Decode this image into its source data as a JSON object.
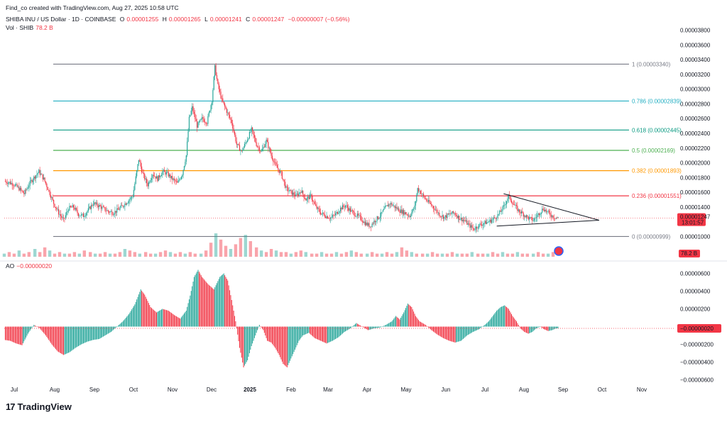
{
  "header": {
    "credit": "Find_co created with TradingView.com, Aug 27, 2025 10:58 UTC",
    "symbol": "SHIBA INU / US Dollar · 1D · COINBASE",
    "o_label": "O",
    "o_value": "0.00001255",
    "h_label": "H",
    "h_value": "0.00001265",
    "l_label": "L",
    "l_value": "0.00001241",
    "c_label": "C",
    "c_value": "0.00001247",
    "change": "−0.00000007 (−0.56%)",
    "vol_label": "Vol · SHIB",
    "vol_value": "78.2 B"
  },
  "ao": {
    "label": "AO",
    "value": "−0.00000020"
  },
  "price_badge": {
    "price": "0.00001247",
    "timer": "13:01:57",
    "color": "#f23645"
  },
  "vol_badge": {
    "value": "78.2 B",
    "color": "#f23645"
  },
  "ao_badge": {
    "value": "−0.00000020",
    "color": "#f23645"
  },
  "logo": {
    "mark": "17",
    "text": "TradingView"
  },
  "colors": {
    "up": "#26a69a",
    "down": "#f23645",
    "ao_up": "#26a69a",
    "ao_down": "#f23645"
  },
  "chart_data": [
    {
      "type": "candlestick",
      "x_ticks": [
        "Jul",
        "Aug",
        "Sep",
        "Oct",
        "Nov",
        "Dec",
        "2025",
        "Feb",
        "Mar",
        "Apr",
        "May",
        "Jun",
        "Jul",
        "Aug",
        "Sep",
        "Oct",
        "Nov"
      ],
      "y_ticks": [
        "0.00003800",
        "0.00003600",
        "0.00003400",
        "0.00003200",
        "0.00003000",
        "0.00002800",
        "0.00002600",
        "0.00002400",
        "0.00002200",
        "0.00002000",
        "0.00001800",
        "0.00001600",
        "0.00001400",
        "0.00001000"
      ],
      "y_tick_values": [
        3.8,
        3.6,
        3.4,
        3.2,
        3.0,
        2.8,
        2.6,
        2.4,
        2.2,
        2.0,
        1.8,
        1.6,
        1.4,
        1.0
      ],
      "y_unit_scale": 1e-05,
      "ylim": [
        0.82,
        3.98
      ],
      "close_path": [
        [
          0,
          1.75
        ],
        [
          8,
          1.72
        ],
        [
          15,
          1.65
        ],
        [
          20,
          1.58
        ],
        [
          27,
          1.75
        ],
        [
          35,
          1.88
        ],
        [
          40,
          1.78
        ],
        [
          45,
          1.62
        ],
        [
          50,
          1.45
        ],
        [
          55,
          1.32
        ],
        [
          60,
          1.22
        ],
        [
          65,
          1.38
        ],
        [
          70,
          1.4
        ],
        [
          75,
          1.3
        ],
        [
          80,
          1.28
        ],
        [
          85,
          1.36
        ],
        [
          90,
          1.45
        ],
        [
          95,
          1.42
        ],
        [
          100,
          1.38
        ],
        [
          105,
          1.34
        ],
        [
          110,
          1.32
        ],
        [
          115,
          1.36
        ],
        [
          120,
          1.42
        ],
        [
          125,
          1.48
        ],
        [
          130,
          1.55
        ],
        [
          133,
          1.8
        ],
        [
          136,
          2.05
        ],
        [
          140,
          1.85
        ],
        [
          145,
          1.7
        ],
        [
          150,
          1.85
        ],
        [
          155,
          1.78
        ],
        [
          160,
          1.88
        ],
        [
          165,
          1.85
        ],
        [
          170,
          1.78
        ],
        [
          175,
          1.72
        ],
        [
          180,
          1.85
        ],
        [
          184,
          2.1
        ],
        [
          187,
          2.6
        ],
        [
          190,
          2.75
        ],
        [
          195,
          2.5
        ],
        [
          200,
          2.6
        ],
        [
          205,
          2.55
        ],
        [
          210,
          2.85
        ],
        [
          213,
          3.3
        ],
        [
          216,
          3.05
        ],
        [
          220,
          2.85
        ],
        [
          225,
          2.7
        ],
        [
          230,
          2.55
        ],
        [
          235,
          2.25
        ],
        [
          240,
          2.15
        ],
        [
          245,
          2.3
        ],
        [
          250,
          2.45
        ],
        [
          255,
          2.25
        ],
        [
          260,
          2.15
        ],
        [
          265,
          2.3
        ],
        [
          270,
          2.1
        ],
        [
          275,
          1.95
        ],
        [
          280,
          1.85
        ],
        [
          285,
          1.65
        ],
        [
          290,
          1.6
        ],
        [
          295,
          1.55
        ],
        [
          300,
          1.62
        ],
        [
          305,
          1.5
        ],
        [
          310,
          1.55
        ],
        [
          315,
          1.4
        ],
        [
          320,
          1.32
        ],
        [
          325,
          1.28
        ],
        [
          330,
          1.25
        ],
        [
          335,
          1.3
        ],
        [
          340,
          1.38
        ],
        [
          345,
          1.42
        ],
        [
          350,
          1.35
        ],
        [
          355,
          1.3
        ],
        [
          360,
          1.25
        ],
        [
          365,
          1.18
        ],
        [
          370,
          1.14
        ],
        [
          375,
          1.22
        ],
        [
          380,
          1.28
        ],
        [
          385,
          1.38
        ],
        [
          390,
          1.45
        ],
        [
          395,
          1.4
        ],
        [
          400,
          1.35
        ],
        [
          405,
          1.32
        ],
        [
          410,
          1.28
        ],
        [
          415,
          1.4
        ],
        [
          418,
          1.65
        ],
        [
          421,
          1.6
        ],
        [
          425,
          1.52
        ],
        [
          430,
          1.45
        ],
        [
          435,
          1.38
        ],
        [
          440,
          1.3
        ],
        [
          445,
          1.26
        ],
        [
          450,
          1.3
        ],
        [
          455,
          1.32
        ],
        [
          460,
          1.25
        ],
        [
          465,
          1.22
        ],
        [
          470,
          1.15
        ],
        [
          475,
          1.1
        ],
        [
          480,
          1.15
        ],
        [
          485,
          1.18
        ],
        [
          490,
          1.2
        ],
        [
          495,
          1.24
        ],
        [
          500,
          1.3
        ],
        [
          505,
          1.4
        ],
        [
          510,
          1.55
        ],
        [
          513,
          1.48
        ],
        [
          516,
          1.42
        ],
        [
          520,
          1.35
        ],
        [
          525,
          1.3
        ],
        [
          530,
          1.25
        ],
        [
          535,
          1.22
        ],
        [
          540,
          1.3
        ],
        [
          545,
          1.38
        ],
        [
          550,
          1.32
        ],
        [
          555,
          1.27
        ],
        [
          560,
          1.25
        ]
      ],
      "fib_levels": [
        {
          "ratio": "1",
          "value": "0.00003340",
          "y": 3.34,
          "color": "#787b86"
        },
        {
          "ratio": "0.786",
          "value": "0.00002839",
          "y": 2.839,
          "color": "#22aec2"
        },
        {
          "ratio": "0.618",
          "value": "0.00002445",
          "y": 2.445,
          "color": "#089981"
        },
        {
          "ratio": "0.5",
          "value": "0.00002169",
          "y": 2.169,
          "color": "#4caf50"
        },
        {
          "ratio": "0.382",
          "value": "0.00001893",
          "y": 1.893,
          "color": "#ff9800"
        },
        {
          "ratio": "0.236",
          "value": "0.00001551",
          "y": 1.551,
          "color": "#f23645"
        },
        {
          "ratio": "0",
          "value": "0.00000999",
          "y": 0.999,
          "color": "#787b86"
        }
      ],
      "last_price": 1.247,
      "triangle": {
        "upper": [
          [
            505,
            1.58
          ],
          [
            580,
            1.22
          ]
        ],
        "lower": [
          [
            498,
            1.14
          ],
          [
            580,
            1.22
          ]
        ]
      }
    },
    {
      "type": "bar",
      "name": "Vol · SHIB",
      "description_values": [
        2,
        3,
        2,
        4,
        2,
        3,
        5,
        3,
        6,
        4,
        2,
        3,
        2,
        2,
        3,
        2,
        4,
        3,
        2,
        2,
        3,
        2,
        2,
        3,
        5,
        4,
        3,
        2,
        3,
        2,
        2,
        3,
        4,
        3,
        2,
        3,
        2,
        3,
        2,
        2,
        4,
        9,
        15,
        11,
        7,
        5,
        8,
        12,
        14,
        10,
        6,
        4,
        3,
        5,
        4,
        3,
        3,
        2,
        3,
        4,
        3,
        2,
        2,
        3,
        2,
        2,
        3,
        2,
        3,
        4,
        3,
        2,
        2,
        3,
        2,
        2,
        3,
        2,
        3,
        6,
        4,
        3,
        2,
        2,
        2,
        3,
        2,
        2,
        2,
        3,
        2,
        2,
        2,
        3,
        2,
        2,
        2,
        3,
        2,
        3,
        2,
        2,
        3,
        2,
        2,
        2,
        3,
        2,
        2,
        3
      ]
    },
    {
      "type": "bar",
      "name": "AO",
      "y_ticks": [
        "0.00000600",
        "0.00000400",
        "0.00000200",
        "0.00000000",
        "−0.00000200",
        "−0.00000400",
        "−0.00000600"
      ],
      "y_tick_values": [
        6,
        4,
        2,
        0,
        -2,
        -4,
        -6
      ],
      "y_unit_scale": 1e-06,
      "ylim": [
        -6.2,
        6.6
      ],
      "path": [
        [
          0,
          -1.5
        ],
        [
          6,
          -1.6
        ],
        [
          12,
          -1.9
        ],
        [
          18,
          -2.1
        ],
        [
          24,
          -0.8
        ],
        [
          30,
          0.2
        ],
        [
          36,
          -0.2
        ],
        [
          42,
          -1.0
        ],
        [
          48,
          -2.0
        ],
        [
          54,
          -2.8
        ],
        [
          60,
          -3.2
        ],
        [
          66,
          -2.9
        ],
        [
          72,
          -2.4
        ],
        [
          78,
          -2.0
        ],
        [
          84,
          -1.7
        ],
        [
          90,
          -1.5
        ],
        [
          96,
          -1.4
        ],
        [
          102,
          -1.0
        ],
        [
          108,
          -0.6
        ],
        [
          114,
          0.0
        ],
        [
          120,
          0.6
        ],
        [
          126,
          1.4
        ],
        [
          132,
          2.5
        ],
        [
          138,
          4.2
        ],
        [
          142,
          3.6
        ],
        [
          148,
          2.2
        ],
        [
          154,
          1.6
        ],
        [
          160,
          2.0
        ],
        [
          166,
          1.8
        ],
        [
          172,
          1.3
        ],
        [
          178,
          0.9
        ],
        [
          184,
          1.8
        ],
        [
          188,
          3.5
        ],
        [
          192,
          5.6
        ],
        [
          196,
          6.4
        ],
        [
          200,
          5.6
        ],
        [
          206,
          4.8
        ],
        [
          212,
          4.2
        ],
        [
          218,
          5.6
        ],
        [
          222,
          6.0
        ],
        [
          226,
          5.2
        ],
        [
          230,
          3.0
        ],
        [
          234,
          0.6
        ],
        [
          238,
          -2.4
        ],
        [
          242,
          -4.6
        ],
        [
          246,
          -3.8
        ],
        [
          250,
          -2.2
        ],
        [
          254,
          -1.0
        ],
        [
          258,
          0.2
        ],
        [
          262,
          -0.4
        ],
        [
          266,
          -1.6
        ],
        [
          270,
          -1.8
        ],
        [
          274,
          -2.4
        ],
        [
          278,
          -3.2
        ],
        [
          282,
          -4.2
        ],
        [
          286,
          -4.6
        ],
        [
          290,
          -3.6
        ],
        [
          294,
          -2.6
        ],
        [
          298,
          -1.6
        ],
        [
          302,
          -1.0
        ],
        [
          308,
          -0.7
        ],
        [
          314,
          -1.3
        ],
        [
          320,
          -1.6
        ],
        [
          326,
          -1.9
        ],
        [
          332,
          -1.6
        ],
        [
          338,
          -1.2
        ],
        [
          344,
          -0.6
        ],
        [
          350,
          -0.2
        ],
        [
          356,
          0.4
        ],
        [
          362,
          0.0
        ],
        [
          368,
          -0.4
        ],
        [
          374,
          -0.2
        ],
        [
          380,
          -0.1
        ],
        [
          386,
          0.2
        ],
        [
          392,
          0.6
        ],
        [
          396,
          1.2
        ],
        [
          400,
          0.8
        ],
        [
          404,
          1.6
        ],
        [
          408,
          2.6
        ],
        [
          412,
          2.2
        ],
        [
          416,
          1.2
        ],
        [
          420,
          0.6
        ],
        [
          426,
          0.2
        ],
        [
          432,
          -0.4
        ],
        [
          438,
          -0.9
        ],
        [
          444,
          -1.3
        ],
        [
          450,
          -1.6
        ],
        [
          456,
          -1.8
        ],
        [
          462,
          -1.6
        ],
        [
          468,
          -1.0
        ],
        [
          474,
          -0.6
        ],
        [
          480,
          -0.3
        ],
        [
          486,
          0.2
        ],
        [
          490,
          0.6
        ],
        [
          494,
          1.2
        ],
        [
          498,
          1.8
        ],
        [
          502,
          2.2
        ],
        [
          506,
          2.4
        ],
        [
          510,
          2.0
        ],
        [
          514,
          1.2
        ],
        [
          518,
          0.6
        ],
        [
          522,
          -0.2
        ],
        [
          526,
          -0.6
        ],
        [
          530,
          -0.8
        ],
        [
          534,
          -0.6
        ],
        [
          538,
          -0.2
        ],
        [
          542,
          0.0
        ],
        [
          546,
          -0.3
        ],
        [
          550,
          -0.5
        ],
        [
          554,
          -0.4
        ],
        [
          558,
          -0.2
        ],
        [
          560,
          -0.2
        ]
      ]
    }
  ]
}
